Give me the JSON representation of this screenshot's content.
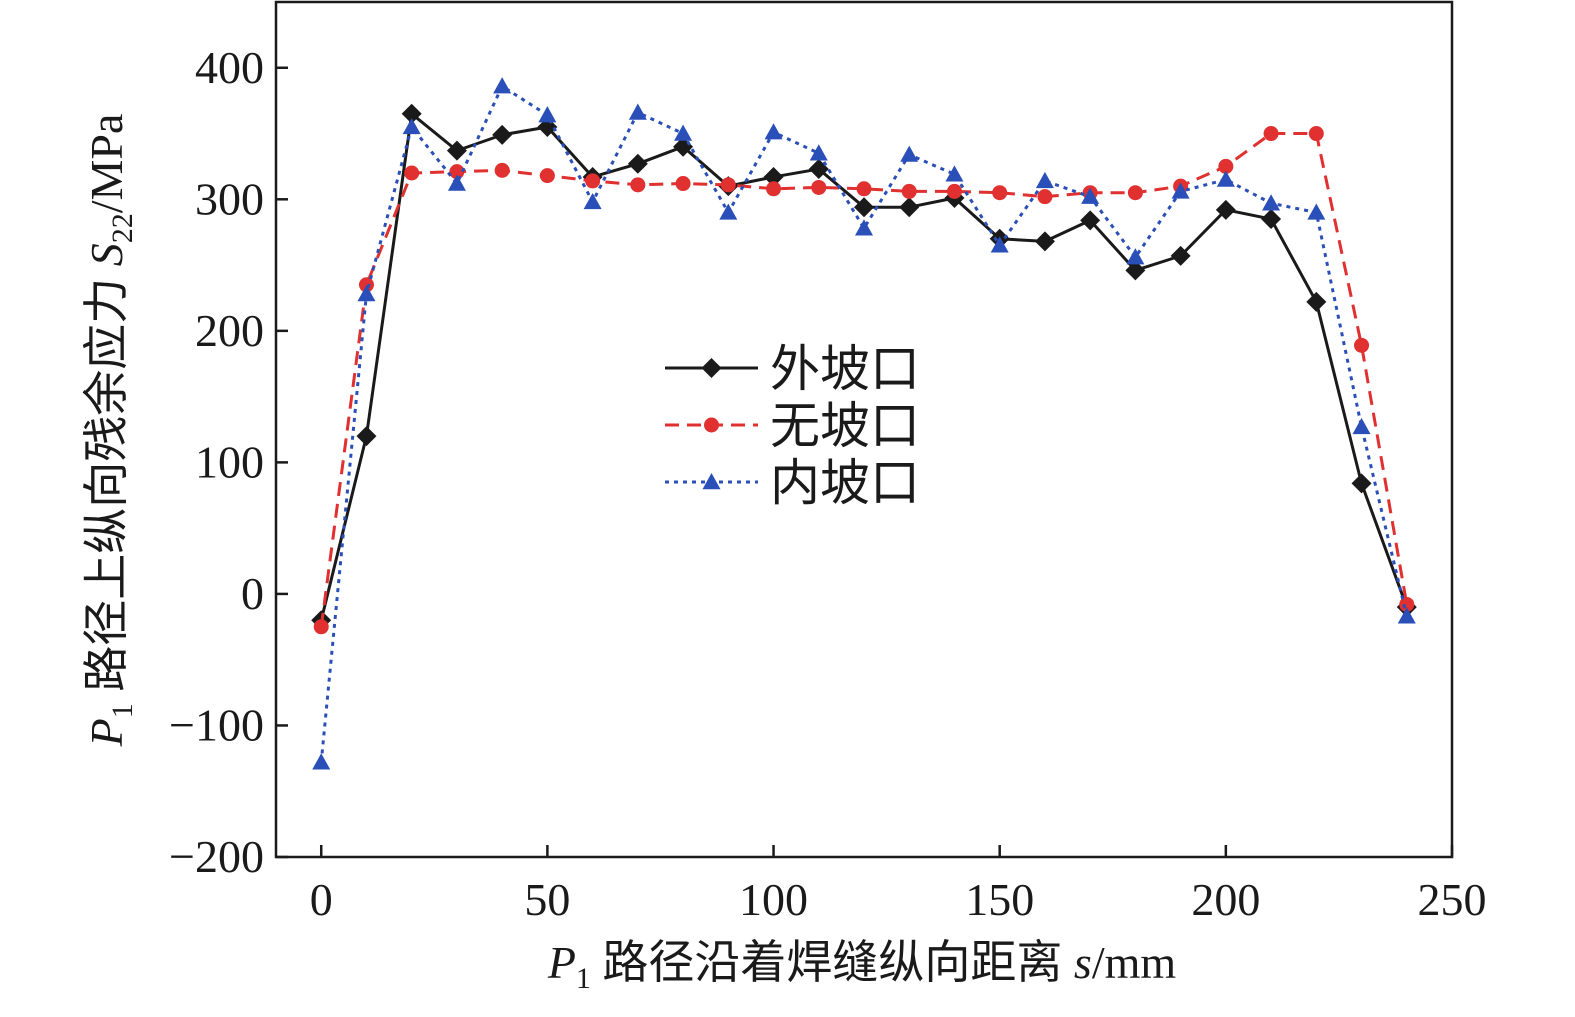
{
  "chart_data": {
    "type": "line",
    "xlabel": {
      "var": "P",
      "sub": "1",
      "cjk": " 路径沿着焊缝纵向距离 ",
      "sym": "s",
      "unit": "/mm"
    },
    "ylabel": {
      "var": "P",
      "sub": "1",
      "cjk": " 路径上纵向残余应力 ",
      "sym": "S",
      "sym_sub": "22",
      "unit": "/MPa"
    },
    "xlim": [
      -10,
      250
    ],
    "ylim": [
      -200,
      450
    ],
    "x_ticks": [
      0,
      50,
      100,
      150,
      200,
      250
    ],
    "y_ticks": [
      -200,
      -100,
      0,
      100,
      200,
      300,
      400
    ],
    "x_tick_labels": [
      "0",
      "50",
      "100",
      "150",
      "200",
      "250"
    ],
    "y_tick_labels": [
      "−200",
      "−100",
      "0",
      "100",
      "200",
      "300",
      "400"
    ],
    "grid": false,
    "legend_position": "center",
    "x": [
      0,
      10,
      20,
      30,
      40,
      50,
      60,
      70,
      80,
      90,
      100,
      110,
      120,
      130,
      140,
      150,
      160,
      170,
      180,
      190,
      200,
      210,
      220,
      230,
      240
    ],
    "series": [
      {
        "name": "外坡口",
        "color": "#1a1a1a",
        "line_style": "solid",
        "marker": "diamond",
        "values": [
          -20,
          120,
          365,
          337,
          349,
          355,
          317,
          327,
          340,
          310,
          317,
          323,
          294,
          294,
          301,
          270,
          268,
          284,
          246,
          257,
          292,
          285,
          222,
          84,
          -10
        ]
      },
      {
        "name": "无坡口",
        "color": "#e03030",
        "line_style": "dashed",
        "marker": "circle",
        "values": [
          -25,
          235,
          320,
          321,
          322,
          318,
          314,
          311,
          312,
          311,
          308,
          309,
          308,
          306,
          306,
          305,
          302,
          305,
          305,
          310,
          325,
          350,
          350,
          189,
          -8
        ]
      },
      {
        "name": "内坡口",
        "color": "#2a4fb8",
        "line_style": "dotted",
        "marker": "triangle",
        "values": [
          -128,
          228,
          355,
          312,
          386,
          364,
          298,
          366,
          350,
          290,
          351,
          335,
          278,
          334,
          319,
          265,
          314,
          302,
          256,
          306,
          315,
          297,
          290,
          127,
          -17
        ]
      }
    ]
  }
}
